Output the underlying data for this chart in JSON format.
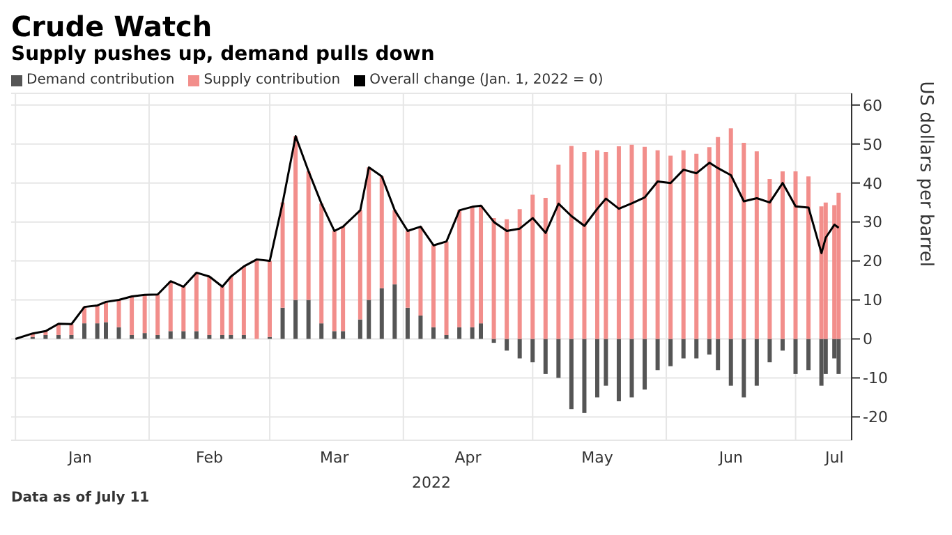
{
  "chart_data": {
    "type": "bar",
    "title": "Crude Watch",
    "subtitle": "Supply pushes up, demand pulls down",
    "xlabel": "2022",
    "ylabel": "US dollars per barrel",
    "annotations": [
      "Data as of July 11"
    ],
    "x": [
      "2022-01-01",
      "2022-01-05",
      "2022-01-08",
      "2022-01-11",
      "2022-01-14",
      "2022-01-17",
      "2022-01-20",
      "2022-01-22",
      "2022-01-25",
      "2022-01-28",
      "2022-01-31",
      "2022-02-03",
      "2022-02-06",
      "2022-02-09",
      "2022-02-12",
      "2022-02-15",
      "2022-02-18",
      "2022-02-20",
      "2022-02-23",
      "2022-02-26",
      "2022-03-01",
      "2022-03-04",
      "2022-03-07",
      "2022-03-10",
      "2022-03-13",
      "2022-03-16",
      "2022-03-18",
      "2022-03-22",
      "2022-03-24",
      "2022-03-27",
      "2022-03-30",
      "2022-04-02",
      "2022-04-05",
      "2022-04-08",
      "2022-04-11",
      "2022-04-14",
      "2022-04-17",
      "2022-04-19",
      "2022-04-22",
      "2022-04-25",
      "2022-04-28",
      "2022-05-01",
      "2022-05-04",
      "2022-05-07",
      "2022-05-10",
      "2022-05-13",
      "2022-05-16",
      "2022-05-18",
      "2022-05-21",
      "2022-05-24",
      "2022-05-27",
      "2022-05-30",
      "2022-06-02",
      "2022-06-05",
      "2022-06-08",
      "2022-06-11",
      "2022-06-13",
      "2022-06-16",
      "2022-06-19",
      "2022-06-22",
      "2022-06-25",
      "2022-06-28",
      "2022-07-01",
      "2022-07-04",
      "2022-07-07",
      "2022-07-08",
      "2022-07-10",
      "2022-07-11"
    ],
    "stacked": true,
    "series": [
      {
        "name": "Demand contribution",
        "color": "#555555",
        "values": [
          0,
          0.5,
          1,
          1,
          1,
          4,
          4,
          4.3,
          3,
          1,
          1.5,
          1,
          2,
          2,
          2,
          1,
          1,
          1,
          1,
          0,
          0.5,
          8,
          10,
          10,
          4,
          2,
          2,
          5,
          10,
          13,
          14,
          8,
          6,
          3,
          1,
          3,
          3,
          4,
          -1,
          -3,
          -5,
          -6,
          -9,
          -10,
          -18,
          -19,
          -15,
          -12,
          -16,
          -15,
          -13,
          -8,
          -7,
          -5,
          -5,
          -4,
          -8,
          -12,
          -15,
          -12,
          -6,
          -3,
          -9,
          -8,
          -12,
          -9,
          -5,
          -9
        ]
      },
      {
        "name": "Supply contribution",
        "color": "#f28e8b",
        "values": [
          0,
          0.9,
          1,
          2.9,
          2.8,
          4.2,
          4.6,
          5.2,
          7,
          9.9,
          9.8,
          10.4,
          12.8,
          11.4,
          15,
          15,
          12.4,
          15,
          17.6,
          20.4,
          19.5,
          27,
          42,
          33,
          30.7,
          25.7,
          26.8,
          28,
          34,
          28.7,
          19,
          19.7,
          22.8,
          21,
          24,
          30,
          30.9,
          30.2,
          31,
          30.7,
          33.3,
          37,
          36.2,
          44.7,
          49.5,
          48,
          48.4,
          48,
          49.4,
          49.8,
          49.3,
          48.4,
          47,
          48.4,
          47.5,
          49.2,
          51.8,
          54,
          50.3,
          48.1,
          41,
          43,
          43,
          41.7,
          34,
          35,
          34.3,
          37.5
        ]
      },
      {
        "name": "Overall change (Jan. 1, 2022 = 0)",
        "type": "line",
        "color": "#000000",
        "values": [
          0,
          1.4,
          2,
          3.9,
          3.8,
          8.2,
          8.6,
          9.5,
          10,
          10.9,
          11.3,
          11.4,
          14.8,
          13.4,
          17,
          16,
          13.4,
          16,
          18.6,
          20.4,
          20,
          35,
          52,
          43,
          34.7,
          27.7,
          28.8,
          33,
          44,
          41.7,
          33,
          27.7,
          28.8,
          24,
          25,
          33,
          33.9,
          34.2,
          30,
          27.7,
          28.3,
          31,
          27.2,
          34.7,
          31.5,
          29,
          33.4,
          36,
          33.4,
          34.8,
          36.3,
          40.4,
          40,
          43.4,
          42.5,
          45.2,
          43.8,
          42,
          35.3,
          36.1,
          35,
          40,
          34,
          33.7,
          22,
          26,
          29.3,
          28.5
        ]
      }
    ],
    "xlim": [
      "2021-12-31",
      "2022-07-14"
    ],
    "xticks": [
      {
        "value": "2022-01-01",
        "label": null
      },
      {
        "value": "2022-01-16",
        "label": "Jan"
      },
      {
        "value": "2022-02-01",
        "label": null
      },
      {
        "value": "2022-02-15",
        "label": "Feb"
      },
      {
        "value": "2022-03-01",
        "label": null
      },
      {
        "value": "2022-03-16",
        "label": "Mar"
      },
      {
        "value": "2022-04-01",
        "label": null
      },
      {
        "value": "2022-04-16",
        "label": "Apr"
      },
      {
        "value": "2022-05-01",
        "label": null
      },
      {
        "value": "2022-05-16",
        "label": "May"
      },
      {
        "value": "2022-06-01",
        "label": null
      },
      {
        "value": "2022-06-16",
        "label": "Jun"
      },
      {
        "value": "2022-07-01",
        "label": null
      },
      {
        "value": "2022-07-10",
        "label": "Jul"
      }
    ],
    "ylim": [
      -26,
      63
    ],
    "yticks": [
      -20,
      -10,
      0,
      10,
      20,
      30,
      40,
      50,
      60
    ],
    "grid": true,
    "legend": "top left"
  }
}
